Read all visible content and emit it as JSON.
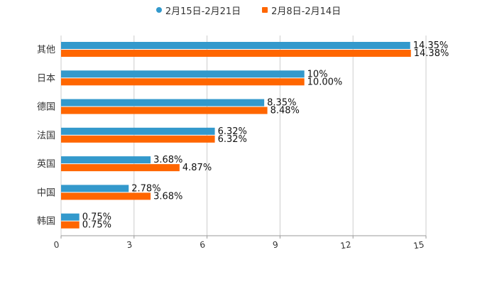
{
  "chart_data": {
    "type": "bar",
    "orientation": "horizontal",
    "title": "",
    "xlabel": "",
    "ylabel": "",
    "xlim": [
      0,
      15
    ],
    "x_ticks": [
      "0",
      "3",
      "6",
      "9",
      "12",
      "15"
    ],
    "grid": true,
    "legend_position": "top",
    "categories": [
      "其他",
      "日本",
      "德国",
      "法国",
      "英国",
      "中国",
      "韩国"
    ],
    "series": [
      {
        "name": "2月15日-2月21日",
        "color": "#3399cc",
        "values": [
          14.35,
          10,
          8.35,
          6.32,
          3.68,
          2.78,
          0.75
        ],
        "labels": [
          "14.35%",
          "10%",
          "8.35%",
          "6.32%",
          "3.68%",
          "2.78%",
          "0.75%"
        ]
      },
      {
        "name": "2月8日-2月14日",
        "color": "#ff6600",
        "values": [
          14.38,
          10.0,
          8.48,
          6.32,
          4.87,
          3.68,
          0.75
        ],
        "labels": [
          "14.38%",
          "10.00%",
          "8.48%",
          "6.32%",
          "4.87%",
          "3.68%",
          "0.75%"
        ]
      }
    ]
  },
  "legend": {
    "items": [
      {
        "label": "2月15日-2月21日",
        "color": "#3399cc",
        "shape": "circle"
      },
      {
        "label": "2月8日-2月14日",
        "color": "#ff6600",
        "shape": "square"
      }
    ]
  }
}
